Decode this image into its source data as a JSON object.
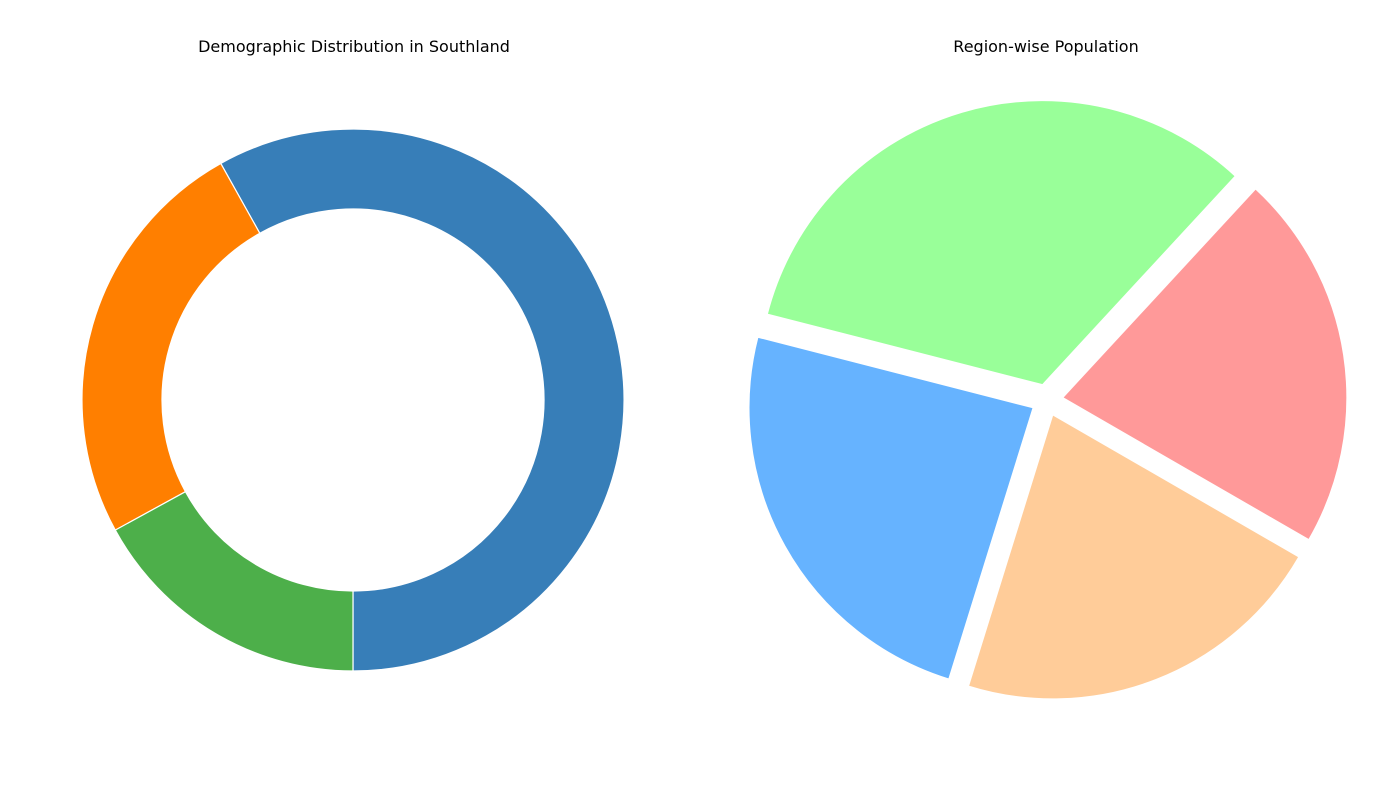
{
  "chart_data": [
    {
      "type": "pie",
      "variant": "donut",
      "title": "Demographic Distribution in Southland",
      "slices": [
        {
          "label": "",
          "value": 50.5,
          "color": "#377eb8"
        },
        {
          "label": "",
          "value": 21.6,
          "color": "#ff7f00"
        },
        {
          "label": "",
          "value": 14.8,
          "color": "#4daf4a"
        }
      ],
      "legend": "none",
      "start_angle_deg": 270,
      "direction": "counterclockwise"
    },
    {
      "type": "pie",
      "title": "Region-wise Population",
      "slices": [
        {
          "label": "",
          "value": 23.5,
          "color": "#ff9999"
        },
        {
          "label": "",
          "value": 36.0,
          "color": "#99ff99"
        },
        {
          "label": "",
          "value": 26.5,
          "color": "#66b3ff"
        },
        {
          "label": "",
          "value": 23.5,
          "color": "#ffcc99"
        }
      ],
      "exploded": true,
      "legend": "none"
    }
  ]
}
